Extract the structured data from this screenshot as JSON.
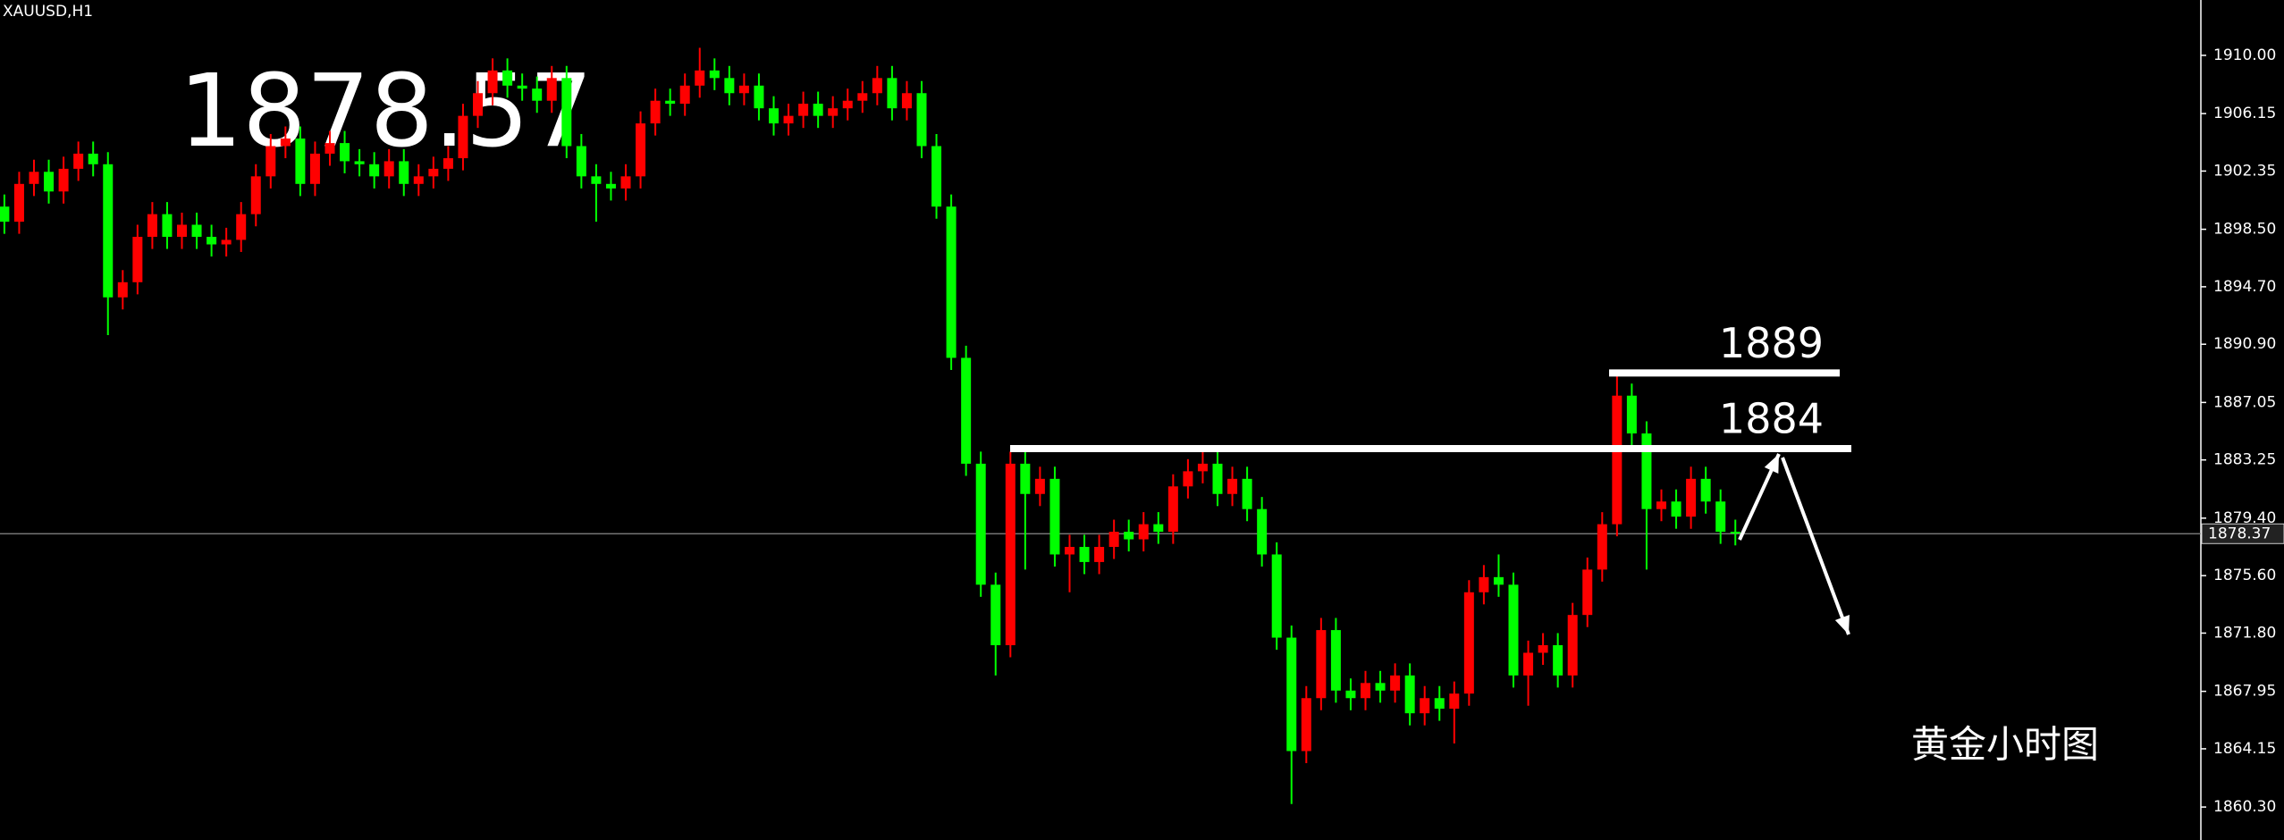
{
  "chart_data": {
    "type": "candlestick",
    "title": "XAUUSD,H1",
    "headline_price": 1878.57,
    "annotation_text": "黄金小时图",
    "last_price": 1878.37,
    "levels": [
      1889,
      1884
    ],
    "up_color": "#ff0000",
    "down_color": "#00ff00",
    "ylim": [
      1858.12,
      1913.66
    ],
    "yticks": [
      {
        "value": 1910,
        "label": "1910.00"
      },
      1906.15,
      1902.35,
      {
        "value": 1898.5,
        "label": "1898.50"
      },
      {
        "value": 1894.7,
        "label": "1894.70"
      },
      {
        "value": 1890.9,
        "label": "1890.90"
      },
      1887.05,
      1883.25,
      {
        "value": 1879.4,
        "label": "1879.40"
      },
      {
        "value": 1875.6,
        "label": "1875.60"
      },
      {
        "value": 1871.8,
        "label": "1871.80"
      },
      1867.95,
      1864.15,
      {
        "value": 1860.3,
        "label": "1860.30"
      }
    ],
    "open": [
      1900.0,
      1899.0,
      1901.5,
      1902.3,
      1901.0,
      1902.5,
      1903.5,
      1902.8,
      1894.0,
      1895.0,
      1898.0,
      1899.5,
      1898.0,
      1898.8,
      1898.0,
      1897.5,
      1897.8,
      1899.5,
      1902.0,
      1904.0,
      1904.5,
      1901.5,
      1903.5,
      1904.2,
      1903.0,
      1902.8,
      1902.0,
      1903.0,
      1901.5,
      1902.0,
      1902.5,
      1903.2,
      1906.0,
      1907.5,
      1909.0,
      1908.0,
      1907.8,
      1907.0,
      1908.5,
      1904.0,
      1902.0,
      1901.5,
      1901.2,
      1902.0,
      1905.5,
      1907.0,
      1906.8,
      1908.0,
      1909.0,
      1908.5,
      1907.5,
      1908.0,
      1906.5,
      1905.5,
      1906.0,
      1906.8,
      1906.0,
      1906.5,
      1907.0,
      1907.5,
      1908.5,
      1906.5,
      1907.5,
      1904.0,
      1900.0,
      1890.0,
      1883.0,
      1875.0,
      1871.0,
      1883.0,
      1881.0,
      1882.0,
      1877.0,
      1877.5,
      1876.5,
      1877.5,
      1878.5,
      1878.0,
      1879.0,
      1878.5,
      1881.5,
      1882.5,
      1883.0,
      1881.0,
      1882.0,
      1880.0,
      1877.0,
      1871.5,
      1864.0,
      1867.5,
      1872.0,
      1868.0,
      1867.5,
      1868.5,
      1868.0,
      1869.0,
      1866.5,
      1867.5,
      1866.8,
      1867.8,
      1874.5,
      1875.5,
      1875.0,
      1869.0,
      1870.5,
      1871.0,
      1869.0,
      1873.0,
      1876.0,
      1879.0,
      1887.5,
      1885.0,
      1880.0,
      1880.5,
      1879.5,
      1882.0,
      1880.5,
      1878.5
    ],
    "high": [
      1900.8,
      1902.3,
      1903.1,
      1903.1,
      1903.3,
      1904.3,
      1904.3,
      1903.6,
      1895.8,
      1898.8,
      1900.3,
      1900.3,
      1899.6,
      1899.6,
      1898.8,
      1898.6,
      1900.3,
      1902.8,
      1904.8,
      1905.3,
      1905.3,
      1904.3,
      1905.0,
      1905.0,
      1903.8,
      1903.6,
      1903.8,
      1903.8,
      1902.8,
      1903.3,
      1904.0,
      1906.8,
      1908.3,
      1909.8,
      1909.8,
      1908.8,
      1908.6,
      1909.3,
      1909.3,
      1904.8,
      1902.8,
      1902.3,
      1902.8,
      1906.3,
      1907.8,
      1907.8,
      1908.8,
      1910.5,
      1909.8,
      1909.3,
      1908.8,
      1908.8,
      1907.3,
      1906.8,
      1907.6,
      1907.6,
      1907.3,
      1907.8,
      1908.3,
      1909.3,
      1909.3,
      1908.3,
      1908.3,
      1904.8,
      1900.8,
      1890.8,
      1883.8,
      1875.8,
      1883.8,
      1883.8,
      1882.8,
      1882.8,
      1878.3,
      1878.3,
      1878.3,
      1879.3,
      1879.3,
      1879.8,
      1879.8,
      1882.3,
      1883.3,
      1884.0,
      1883.8,
      1882.8,
      1882.8,
      1880.8,
      1877.8,
      1872.3,
      1868.3,
      1872.8,
      1872.8,
      1868.8,
      1869.3,
      1869.3,
      1869.8,
      1869.8,
      1868.3,
      1868.3,
      1868.6,
      1875.3,
      1876.3,
      1877.0,
      1875.8,
      1871.3,
      1871.8,
      1871.8,
      1873.8,
      1876.8,
      1879.8,
      1889.2,
      1888.3,
      1885.8,
      1881.3,
      1881.3,
      1882.8,
      1882.8,
      1881.3,
      1879.3
    ],
    "low": [
      1898.2,
      1898.2,
      1900.7,
      1900.2,
      1900.2,
      1901.7,
      1902.0,
      1891.5,
      1893.2,
      1894.2,
      1897.2,
      1897.2,
      1897.2,
      1897.2,
      1896.7,
      1896.7,
      1897.0,
      1898.7,
      1901.2,
      1903.2,
      1900.7,
      1900.7,
      1902.7,
      1902.2,
      1902.0,
      1901.2,
      1901.2,
      1900.7,
      1900.7,
      1901.2,
      1901.7,
      1902.4,
      1905.2,
      1906.7,
      1907.2,
      1907.0,
      1906.2,
      1906.2,
      1903.2,
      1901.2,
      1899.0,
      1900.4,
      1900.4,
      1901.2,
      1904.7,
      1906.0,
      1906.0,
      1907.2,
      1907.7,
      1906.7,
      1906.7,
      1905.7,
      1904.7,
      1904.7,
      1905.2,
      1905.2,
      1905.2,
      1905.7,
      1906.2,
      1906.7,
      1905.7,
      1905.7,
      1903.2,
      1899.2,
      1889.2,
      1882.2,
      1874.2,
      1869.0,
      1870.2,
      1876.0,
      1880.2,
      1876.2,
      1874.5,
      1875.7,
      1875.7,
      1876.7,
      1877.2,
      1877.2,
      1877.7,
      1877.7,
      1880.7,
      1881.7,
      1880.2,
      1880.2,
      1879.2,
      1876.2,
      1870.7,
      1860.5,
      1863.2,
      1866.7,
      1867.2,
      1866.7,
      1866.7,
      1867.2,
      1867.2,
      1865.7,
      1865.7,
      1866.0,
      1864.5,
      1867.0,
      1873.7,
      1874.2,
      1868.2,
      1867.0,
      1869.7,
      1868.2,
      1868.2,
      1872.2,
      1875.2,
      1878.2,
      1884.2,
      1876.0,
      1879.2,
      1878.7,
      1878.7,
      1879.7,
      1877.7,
      1877.6
    ],
    "close": [
      1899.0,
      1901.5,
      1902.3,
      1901.0,
      1902.5,
      1903.5,
      1902.8,
      1894.0,
      1895.0,
      1898.0,
      1899.5,
      1898.0,
      1898.8,
      1898.0,
      1897.5,
      1897.8,
      1899.5,
      1902.0,
      1904.0,
      1904.5,
      1901.5,
      1903.5,
      1904.2,
      1903.0,
      1902.8,
      1902.0,
      1903.0,
      1901.5,
      1902.0,
      1902.5,
      1903.2,
      1906.0,
      1907.5,
      1909.0,
      1908.0,
      1907.8,
      1907.0,
      1908.5,
      1904.0,
      1902.0,
      1901.5,
      1901.2,
      1902.0,
      1905.5,
      1907.0,
      1906.8,
      1908.0,
      1909.0,
      1908.5,
      1907.5,
      1908.0,
      1906.5,
      1905.5,
      1906.0,
      1906.8,
      1906.0,
      1906.5,
      1907.0,
      1907.5,
      1908.5,
      1906.5,
      1907.5,
      1904.0,
      1900.0,
      1890.0,
      1883.0,
      1875.0,
      1871.0,
      1883.0,
      1881.0,
      1882.0,
      1877.0,
      1877.5,
      1876.5,
      1877.5,
      1878.5,
      1878.0,
      1879.0,
      1878.5,
      1881.5,
      1882.5,
      1883.0,
      1881.0,
      1882.0,
      1880.0,
      1877.0,
      1871.5,
      1864.0,
      1867.5,
      1872.0,
      1868.0,
      1867.5,
      1868.5,
      1868.0,
      1869.0,
      1866.5,
      1867.5,
      1866.8,
      1867.8,
      1874.5,
      1875.5,
      1875.0,
      1869.0,
      1870.5,
      1871.0,
      1869.0,
      1873.0,
      1876.0,
      1879.0,
      1887.5,
      1885.0,
      1880.0,
      1880.5,
      1879.5,
      1882.0,
      1880.5,
      1878.5,
      1878.4
    ]
  }
}
